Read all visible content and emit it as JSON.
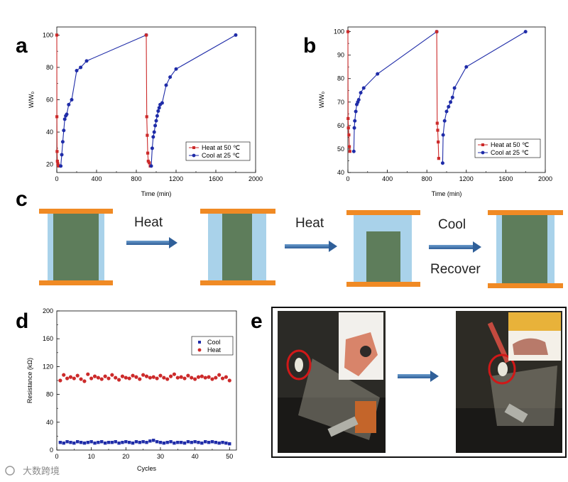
{
  "panels": {
    "a": {
      "letter": "a"
    },
    "b": {
      "letter": "b"
    },
    "c": {
      "letter": "c"
    },
    "d": {
      "letter": "d"
    },
    "e": {
      "letter": "e"
    }
  },
  "chart_data": [
    {
      "id": "a",
      "type": "line",
      "xlabel": "Time (min)",
      "ylabel": "W/W₀",
      "xlim": [
        0,
        2000
      ],
      "ylim": [
        15,
        105
      ],
      "xticks": [
        0,
        400,
        800,
        1200,
        1600,
        2000
      ],
      "yticks": [
        20,
        40,
        60,
        80,
        100
      ],
      "legend_position": "bottom-right",
      "series": [
        {
          "name": "Heat at 50 ℃",
          "color": "#cc2a2a",
          "marker": "square",
          "x": [
            0,
            1,
            3,
            6,
            10,
            15,
            20
          ],
          "y": [
            100,
            49.5,
            28,
            22,
            20.5,
            19.5,
            19
          ]
        },
        {
          "name": "Cool at 25 ℃",
          "color": "#1f2ca8",
          "marker": "circle",
          "x": [
            40,
            50,
            60,
            70,
            80,
            90,
            100,
            120,
            150,
            200,
            240,
            300,
            900
          ],
          "y": [
            19,
            26,
            34,
            41,
            48,
            50,
            51,
            57,
            60,
            78,
            80,
            84,
            100
          ]
        },
        {
          "name": "Heat at 50 ℃",
          "color": "#cc2a2a",
          "marker": "square",
          "x": [
            900,
            905,
            910,
            915,
            920,
            930,
            940
          ],
          "y": [
            100,
            49.5,
            38,
            27,
            22,
            21,
            19
          ]
        },
        {
          "name": "Cool at 25 ℃",
          "color": "#1f2ca8",
          "marker": "circle",
          "x": [
            950,
            960,
            970,
            980,
            990,
            1000,
            1010,
            1020,
            1030,
            1040,
            1060,
            1100,
            1140,
            1200,
            1800
          ],
          "y": [
            19,
            30,
            37,
            40,
            44,
            47,
            50,
            53,
            55,
            57,
            58,
            69,
            74,
            79,
            100
          ]
        }
      ]
    },
    {
      "id": "b",
      "type": "line",
      "xlabel": "Time (min)",
      "ylabel": "W/W₀",
      "xlim": [
        0,
        2000
      ],
      "ylim": [
        40,
        102
      ],
      "xticks": [
        0,
        400,
        800,
        1200,
        1600,
        2000
      ],
      "yticks": [
        40,
        50,
        60,
        70,
        80,
        90,
        100
      ],
      "legend_position": "bottom-right",
      "series": [
        {
          "name": "Heat at 50 ℃",
          "color": "#cc2a2a",
          "marker": "square",
          "x": [
            0,
            2,
            5,
            10,
            15,
            20
          ],
          "y": [
            100,
            63,
            59,
            56,
            51,
            49
          ]
        },
        {
          "name": "Cool at 25 ℃",
          "color": "#1f2ca8",
          "marker": "circle",
          "x": [
            60,
            65,
            70,
            80,
            90,
            100,
            110,
            130,
            160,
            300,
            900
          ],
          "y": [
            49,
            59,
            62,
            66,
            69,
            70,
            71,
            74,
            76,
            82,
            100
          ]
        },
        {
          "name": "Heat at 50 ℃",
          "color": "#cc2a2a",
          "marker": "square",
          "x": [
            900,
            905,
            910,
            915,
            920
          ],
          "y": [
            100,
            61,
            58,
            53,
            46
          ]
        },
        {
          "name": "Cool at 25 ℃",
          "color": "#1f2ca8",
          "marker": "circle",
          "x": [
            960,
            965,
            980,
            1000,
            1020,
            1040,
            1060,
            1080,
            1200,
            1800
          ],
          "y": [
            44,
            56,
            62,
            66,
            68,
            70,
            72,
            76,
            85,
            100
          ]
        }
      ]
    },
    {
      "id": "d",
      "type": "scatter",
      "xlabel": "Cycles",
      "ylabel": "Resistance (kΩ)",
      "xlim": [
        0,
        52
      ],
      "ylim": [
        0,
        200
      ],
      "xticks": [
        0,
        10,
        20,
        30,
        40,
        50
      ],
      "yticks": [
        0,
        40,
        80,
        120,
        160,
        200
      ],
      "legend_position": "top-right",
      "series": [
        {
          "name": "Cool",
          "color": "#1f2ca8",
          "marker": "square",
          "x": [
            1,
            2,
            3,
            4,
            5,
            6,
            7,
            8,
            9,
            10,
            11,
            12,
            13,
            14,
            15,
            16,
            17,
            18,
            19,
            20,
            21,
            22,
            23,
            24,
            25,
            26,
            27,
            28,
            29,
            30,
            31,
            32,
            33,
            34,
            35,
            36,
            37,
            38,
            39,
            40,
            41,
            42,
            43,
            44,
            45,
            46,
            47,
            48,
            49,
            50
          ],
          "y": [
            11,
            10,
            12,
            11,
            10,
            12,
            11,
            10,
            11,
            12,
            10,
            11,
            12,
            10,
            11,
            11,
            12,
            10,
            11,
            12,
            11,
            10,
            12,
            11,
            12,
            11,
            13,
            14,
            12,
            11,
            10,
            11,
            12,
            10,
            11,
            11,
            10,
            12,
            11,
            12,
            11,
            10,
            12,
            11,
            12,
            11,
            10,
            11,
            10,
            9
          ]
        },
        {
          "name": "Heat",
          "color": "#cc2a2a",
          "marker": "circle",
          "x": [
            1,
            2,
            3,
            4,
            5,
            6,
            7,
            8,
            9,
            10,
            11,
            12,
            13,
            14,
            15,
            16,
            17,
            18,
            19,
            20,
            21,
            22,
            23,
            24,
            25,
            26,
            27,
            28,
            29,
            30,
            31,
            32,
            33,
            34,
            35,
            36,
            37,
            38,
            39,
            40,
            41,
            42,
            43,
            44,
            45,
            46,
            47,
            48,
            49,
            50
          ],
          "y": [
            100,
            108,
            103,
            105,
            103,
            107,
            102,
            99,
            109,
            103,
            106,
            104,
            102,
            106,
            103,
            108,
            104,
            101,
            106,
            104,
            103,
            107,
            105,
            102,
            108,
            106,
            104,
            105,
            103,
            107,
            104,
            102,
            106,
            109,
            104,
            105,
            103,
            107,
            104,
            102,
            105,
            106,
            104,
            105,
            102,
            104,
            108,
            103,
            105,
            100
          ]
        }
      ]
    }
  ],
  "schematic": {
    "labels": [
      "Heat",
      "Heat",
      "Cool",
      "Recover"
    ]
  },
  "watermark": {
    "text": "大数跨境"
  },
  "colors": {
    "plate": "#f08a24",
    "frame": "#a9d2ea",
    "core": "#5e7d5b",
    "arrow": "#3b76b6"
  }
}
